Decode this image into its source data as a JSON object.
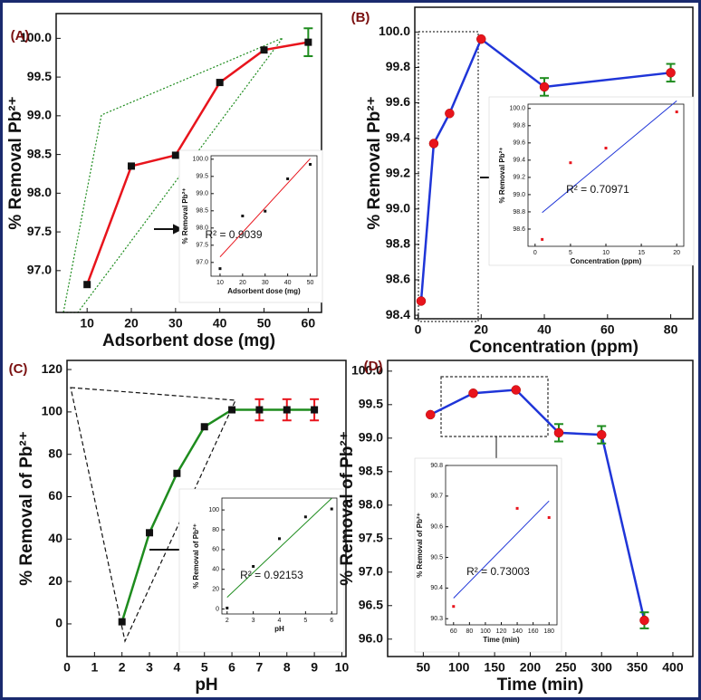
{
  "chart_data": [
    {
      "type": "line",
      "panel_label": "(A)",
      "x_label": "Adsorbent dose (mg)",
      "y_label": "% Removal Pb²⁺",
      "x": [
        10,
        20,
        30,
        40,
        50,
        60
      ],
      "series": [
        {
          "color": "#e8141c",
          "marker_color": "#111111",
          "marker": "square",
          "error_color": "#1e8c1e",
          "values": [
            96.82,
            98.35,
            98.49,
            99.43,
            99.85,
            99.95
          ],
          "errors": [
            null,
            null,
            null,
            null,
            null,
            0.18
          ]
        }
      ],
      "xlim": [
        3,
        63
      ],
      "ylim": [
        96.46,
        100.32
      ],
      "xticks": [
        10,
        20,
        30,
        40,
        50,
        60
      ],
      "yticks": [
        {
          "value": 97,
          "label": "97.0"
        },
        97.5,
        {
          "value": 98,
          "label": "98.0"
        },
        98.5,
        {
          "value": 99,
          "label": "99.0"
        },
        99.5,
        {
          "value": 100,
          "label": "100.0"
        }
      ],
      "inset": {
        "type": "scatter",
        "x_label": "Adsorbent dose (mg)",
        "y_label": "% Removal Pb²⁺",
        "annotation": "R² = 0.9039",
        "x": [
          10,
          20,
          30,
          40,
          50
        ],
        "values": [
          96.82,
          98.35,
          98.49,
          99.43,
          99.85
        ],
        "color": "#111111",
        "fit_color": "#e8141c",
        "xlim": [
          6,
          53
        ],
        "ylim": [
          96.6,
          100.1
        ],
        "xticks": [
          10,
          20,
          30,
          40,
          50
        ],
        "yticks": [
          {
            "value": 97,
            "label": "97.0"
          },
          97.5,
          {
            "value": 98,
            "label": "98.0"
          },
          98.5,
          {
            "value": 99,
            "label": "99.0"
          },
          99.5,
          {
            "value": 100,
            "label": "100.0"
          }
        ]
      }
    },
    {
      "type": "line",
      "panel_label": "(B)",
      "x_label": "Concentration (ppm)",
      "y_label": "% Removal Pb²⁺",
      "x": [
        1,
        5,
        10,
        20,
        40,
        80
      ],
      "series": [
        {
          "color": "#1f35d8",
          "marker_color": "#e8141c",
          "marker": "circle",
          "error_color": "#1e8c1e",
          "values": [
            98.48,
            99.37,
            99.54,
            99.96,
            99.69,
            99.77
          ],
          "errors": [
            null,
            null,
            null,
            null,
            0.05,
            0.05
          ]
        }
      ],
      "xlim": [
        -1,
        87
      ],
      "ylim": [
        98.38,
        100.14
      ],
      "xticks": [
        0,
        20,
        40,
        60,
        80
      ],
      "yticks": [
        98.4,
        98.6,
        98.8,
        {
          "value": 99,
          "label": "99.0"
        },
        99.2,
        99.4,
        99.6,
        99.8,
        {
          "value": 100,
          "label": "100.0"
        }
      ],
      "inset": {
        "type": "scatter",
        "x_label": "Concentration (ppm)",
        "y_label": "% Removal Pb²⁺",
        "annotation": "R² = 0.70971",
        "x": [
          1,
          5,
          10,
          20
        ],
        "values": [
          98.48,
          99.37,
          99.54,
          99.96
        ],
        "color": "#e8141c",
        "fit_color": "#1f35d8",
        "xlim": [
          -1,
          21
        ],
        "ylim": [
          98.4,
          100.05
        ],
        "xticks": [
          0,
          5,
          10,
          15,
          20
        ],
        "yticks": [
          98.6,
          98.8,
          {
            "value": 99,
            "label": "99.0"
          },
          99.2,
          99.4,
          99.6,
          99.8,
          {
            "value": 100,
            "label": "100.0"
          }
        ]
      }
    },
    {
      "type": "line",
      "panel_label": "(C)",
      "x_label": "pH",
      "y_label": "% Removal of Pb²⁺",
      "x": [
        2,
        3,
        4,
        5,
        6,
        7,
        8,
        9
      ],
      "series": [
        {
          "color": "#1e8c1e",
          "marker_color": "#111111",
          "marker": "square",
          "error_color": "#e8141c",
          "values": [
            1,
            43,
            71,
            93,
            101,
            101,
            101,
            101
          ],
          "errors": [
            null,
            null,
            null,
            null,
            null,
            5,
            5,
            5
          ]
        }
      ],
      "xlim": [
        0,
        10.15
      ],
      "ylim": [
        -15.4,
        124.3
      ],
      "xticks": [
        0,
        1,
        2,
        3,
        4,
        5,
        6,
        7,
        8,
        9,
        10
      ],
      "yticks": [
        0,
        20,
        40,
        60,
        80,
        100,
        120
      ],
      "inset": {
        "type": "scatter",
        "x_label": "pH",
        "y_label": "% Removal of Pb²⁺",
        "annotation": "R² = 0.92153",
        "x": [
          2,
          3,
          4,
          5,
          6
        ],
        "values": [
          1,
          43,
          71,
          93,
          101
        ],
        "color": "#111111",
        "fit_color": "#1e8c1e",
        "xlim": [
          1.8,
          6.2
        ],
        "ylim": [
          -5,
          112
        ],
        "xticks": [
          2,
          3,
          4,
          5,
          6
        ],
        "yticks": [
          0,
          20,
          40,
          60,
          80,
          100
        ]
      }
    },
    {
      "type": "line",
      "panel_label": "(D)",
      "x_label": "Time (min)",
      "y_label": "% Removal of Pb²⁺",
      "x": [
        60,
        120,
        180,
        240,
        300,
        360
      ],
      "series": [
        {
          "color": "#1f35d8",
          "marker_color": "#e8141c",
          "marker": "circle",
          "error_color": "#1e8c1e",
          "values": [
            99.35,
            99.67,
            99.72,
            99.08,
            99.05,
            96.28
          ],
          "errors": [
            null,
            null,
            null,
            0.13,
            0.13,
            0.12
          ]
        }
      ],
      "xlim": [
        0,
        428
      ],
      "ylim": [
        95.74,
        100.16
      ],
      "xticks": [
        50,
        100,
        150,
        200,
        250,
        300,
        350,
        400
      ],
      "yticks": [
        {
          "value": 96,
          "label": "96.0"
        },
        96.5,
        {
          "value": 97,
          "label": "97.0"
        },
        97.5,
        {
          "value": 98,
          "label": "98.0"
        },
        98.5,
        {
          "value": 99,
          "label": "99.0"
        },
        99.5,
        {
          "value": 100,
          "label": "100.0"
        }
      ],
      "inset": {
        "type": "scatter",
        "x_label": "Time (min)",
        "y_label": "% Removal of Pb²⁺",
        "annotation": "R² = 0.73003",
        "x": [
          60,
          140,
          180
        ],
        "values": [
          90.34,
          90.66,
          90.63
        ],
        "color": "#e8141c",
        "fit_color": "#1f35d8",
        "xlim": [
          50,
          190
        ],
        "ylim": [
          90.28,
          90.8
        ],
        "xticks": [
          60,
          80,
          100,
          120,
          140,
          160,
          180
        ],
        "yticks": [
          90.3,
          90.4,
          90.5,
          90.6,
          90.7,
          90.8
        ]
      }
    }
  ]
}
